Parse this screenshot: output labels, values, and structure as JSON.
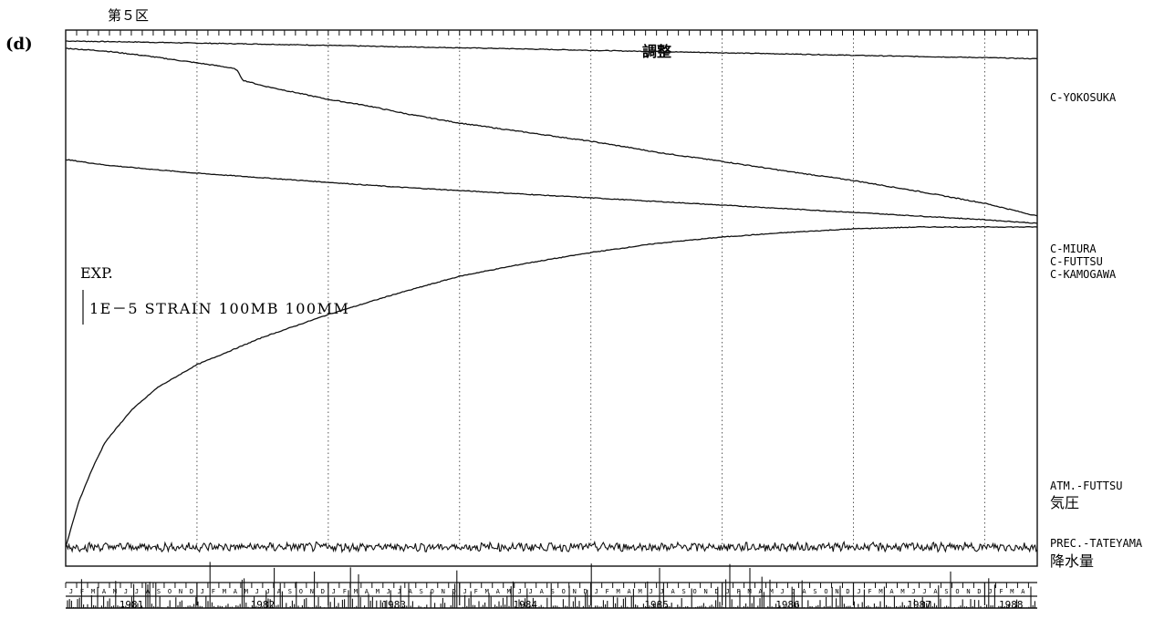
{
  "panel_label": "(d)",
  "district_label": "第５区",
  "adjustment_label": "調整",
  "scale_label_exp": "EXP.",
  "scale_label_values": "1E－5 STRAIN 100MB 100MM",
  "colors": {
    "ink": "#111111",
    "grid": "#555555",
    "background": "#ffffff"
  },
  "chart_data": {
    "type": "line",
    "x_axis": {
      "unit": "year",
      "range": [
        1981.0,
        1988.4
      ],
      "year_labels": [
        "1981",
        "1982",
        "1983",
        "1984",
        "1985",
        "1986",
        "1987",
        "1988"
      ],
      "month_tick_labels": [
        "J",
        "F",
        "M",
        "A",
        "M",
        "J",
        "J",
        "A",
        "S",
        "O",
        "N",
        "D"
      ],
      "vertical_gridlines": "dotted at each year boundary"
    },
    "series": [
      {
        "name": "C-YOKOSUKA",
        "x": [
          1981.0,
          1981.5,
          1982.0,
          1982.5,
          1983.0,
          1983.5,
          1984.0,
          1984.5,
          1985.0,
          1985.5,
          1986.0,
          1986.5,
          1987.0,
          1987.5,
          1988.0,
          1988.4
        ],
        "y": [
          100.0,
          99.0,
          97.7,
          96.6,
          95.2,
          93.8,
          92.6,
          91.3,
          89.8,
          88.4,
          87.1,
          85.8,
          84.3,
          83.0,
          81.8,
          80.5
        ]
      },
      {
        "name": "C-MIURA",
        "x": [
          1981.0,
          1981.3,
          1981.6,
          1981.9,
          1982.2,
          1982.3,
          1982.35,
          1982.5,
          1982.8,
          1983.0,
          1983.3,
          1983.6,
          1984.0,
          1984.5,
          1985.0,
          1985.3,
          1985.5,
          1986.0,
          1986.5,
          1987.0,
          1987.5,
          1988.0,
          1988.4
        ],
        "y": [
          92.0,
          89.0,
          84.0,
          78.0,
          72.0,
          69.0,
          57.0,
          51.0,
          42.0,
          36.0,
          29.0,
          20.0,
          10.0,
          0.0,
          -10.0,
          -17.0,
          -22.0,
          -32.0,
          -43.0,
          -53.0,
          -65.0,
          -78.0,
          -92.0
        ]
      },
      {
        "name": "C-FUTTSU",
        "x": [
          1981.0,
          1981.3,
          1981.6,
          1982.0,
          1982.5,
          1983.0,
          1983.5,
          1984.0,
          1984.5,
          1985.0,
          1985.5,
          1986.0,
          1986.5,
          1987.0,
          1987.5,
          1988.0,
          1988.4
        ],
        "y": [
          -30.0,
          -36.0,
          -40.0,
          -45.0,
          -50.0,
          -55.0,
          -60.0,
          -64.0,
          -68.0,
          -72.0,
          -76.0,
          -80.0,
          -84.0,
          -88.0,
          -92.0,
          -96.0,
          -100.0
        ]
      },
      {
        "name": "C-KAMOGAWA",
        "x": [
          1981.0,
          1981.05,
          1981.1,
          1981.2,
          1981.3,
          1981.5,
          1981.7,
          1982.0,
          1982.5,
          1983.0,
          1983.5,
          1984.0,
          1984.5,
          1985.0,
          1985.5,
          1986.0,
          1986.5,
          1987.0,
          1987.5,
          1988.0,
          1988.4
        ],
        "y": [
          -455.0,
          -430.0,
          -405.0,
          -370.0,
          -340.0,
          -305.0,
          -280.0,
          -255.0,
          -225.0,
          -200.0,
          -178.0,
          -158.0,
          -144.0,
          -132.0,
          -122.0,
          -115.0,
          -110.0,
          -106.0,
          -104.0,
          -104.0,
          -104.0
        ]
      },
      {
        "name": "ATM.-FUTTSU",
        "name_jp": "気圧",
        "baseline": -455.0,
        "noise_amplitude": 5,
        "note_type": "noisy atmospheric pressure trace"
      },
      {
        "name": "PREC.-TATEYAMA",
        "name_jp": "降水量",
        "type": "bar",
        "baseline": -522.0,
        "max_value": 52
      }
    ]
  }
}
